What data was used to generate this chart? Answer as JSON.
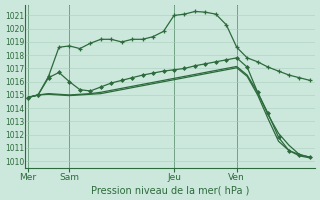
{
  "xlabel": "Pression niveau de la mer( hPa )",
  "bg_color": "#cce8dc",
  "grid_color": "#aacfbe",
  "line_color": "#2d6a3c",
  "ylim": [
    1009.5,
    1021.8
  ],
  "yticks": [
    1010,
    1011,
    1012,
    1013,
    1014,
    1015,
    1016,
    1017,
    1018,
    1019,
    1020,
    1021
  ],
  "day_labels": [
    "Mer",
    "Sam",
    "Jeu",
    "Ven"
  ],
  "day_positions": [
    0,
    4,
    14,
    20
  ],
  "xlim": [
    -0.2,
    27.5
  ],
  "line1_x": [
    0,
    1,
    2,
    3,
    4,
    5,
    6,
    7,
    8,
    9,
    10,
    11,
    12,
    13,
    14,
    15,
    16,
    17,
    18,
    19,
    20,
    21,
    22,
    23,
    24,
    25,
    26,
    27
  ],
  "line1_y": [
    1014.8,
    1015.0,
    1016.4,
    1018.6,
    1018.7,
    1018.5,
    1018.9,
    1019.2,
    1019.2,
    1019.0,
    1019.2,
    1019.2,
    1019.4,
    1019.8,
    1021.0,
    1021.1,
    1021.3,
    1021.25,
    1021.1,
    1020.3,
    1018.6,
    1017.8,
    1017.5,
    1017.1,
    1016.8,
    1016.5,
    1016.3,
    1016.1
  ],
  "line2_x": [
    0,
    1,
    2,
    3,
    4,
    5,
    6,
    7,
    8,
    9,
    10,
    11,
    12,
    13,
    14,
    15,
    16,
    17,
    18,
    19,
    20,
    21,
    22,
    23,
    24,
    25,
    26,
    27
  ],
  "line2_y": [
    1014.8,
    1015.0,
    1016.3,
    1016.7,
    1016.0,
    1015.4,
    1015.3,
    1015.6,
    1015.9,
    1016.1,
    1016.3,
    1016.5,
    1016.65,
    1016.8,
    1016.9,
    1017.0,
    1017.2,
    1017.35,
    1017.5,
    1017.65,
    1017.8,
    1017.1,
    1015.2,
    1013.6,
    1011.8,
    1010.8,
    1010.5,
    1010.3
  ],
  "line3_x": [
    0,
    1,
    2,
    3,
    4,
    5,
    6,
    7,
    8,
    9,
    10,
    11,
    12,
    13,
    14,
    15,
    16,
    17,
    18,
    19,
    20,
    21,
    22,
    23,
    24,
    25,
    26,
    27
  ],
  "line3_y": [
    1014.8,
    1015.0,
    1015.1,
    1015.05,
    1015.0,
    1015.05,
    1015.1,
    1015.2,
    1015.35,
    1015.5,
    1015.65,
    1015.8,
    1015.95,
    1016.1,
    1016.25,
    1016.4,
    1016.55,
    1016.7,
    1016.85,
    1017.0,
    1017.15,
    1016.5,
    1015.2,
    1013.5,
    1012.1,
    1011.2,
    1010.5,
    1010.3
  ],
  "line4_x": [
    0,
    1,
    2,
    3,
    4,
    5,
    6,
    7,
    8,
    9,
    10,
    11,
    12,
    13,
    14,
    15,
    16,
    17,
    18,
    19,
    20,
    21,
    22,
    23,
    24,
    25,
    26,
    27
  ],
  "line4_y": [
    1014.8,
    1015.0,
    1015.05,
    1015.0,
    1014.95,
    1015.0,
    1015.05,
    1015.1,
    1015.25,
    1015.4,
    1015.55,
    1015.7,
    1015.85,
    1016.0,
    1016.15,
    1016.3,
    1016.45,
    1016.6,
    1016.75,
    1016.9,
    1017.05,
    1016.4,
    1015.0,
    1013.2,
    1011.5,
    1010.8,
    1010.4,
    1010.25
  ]
}
